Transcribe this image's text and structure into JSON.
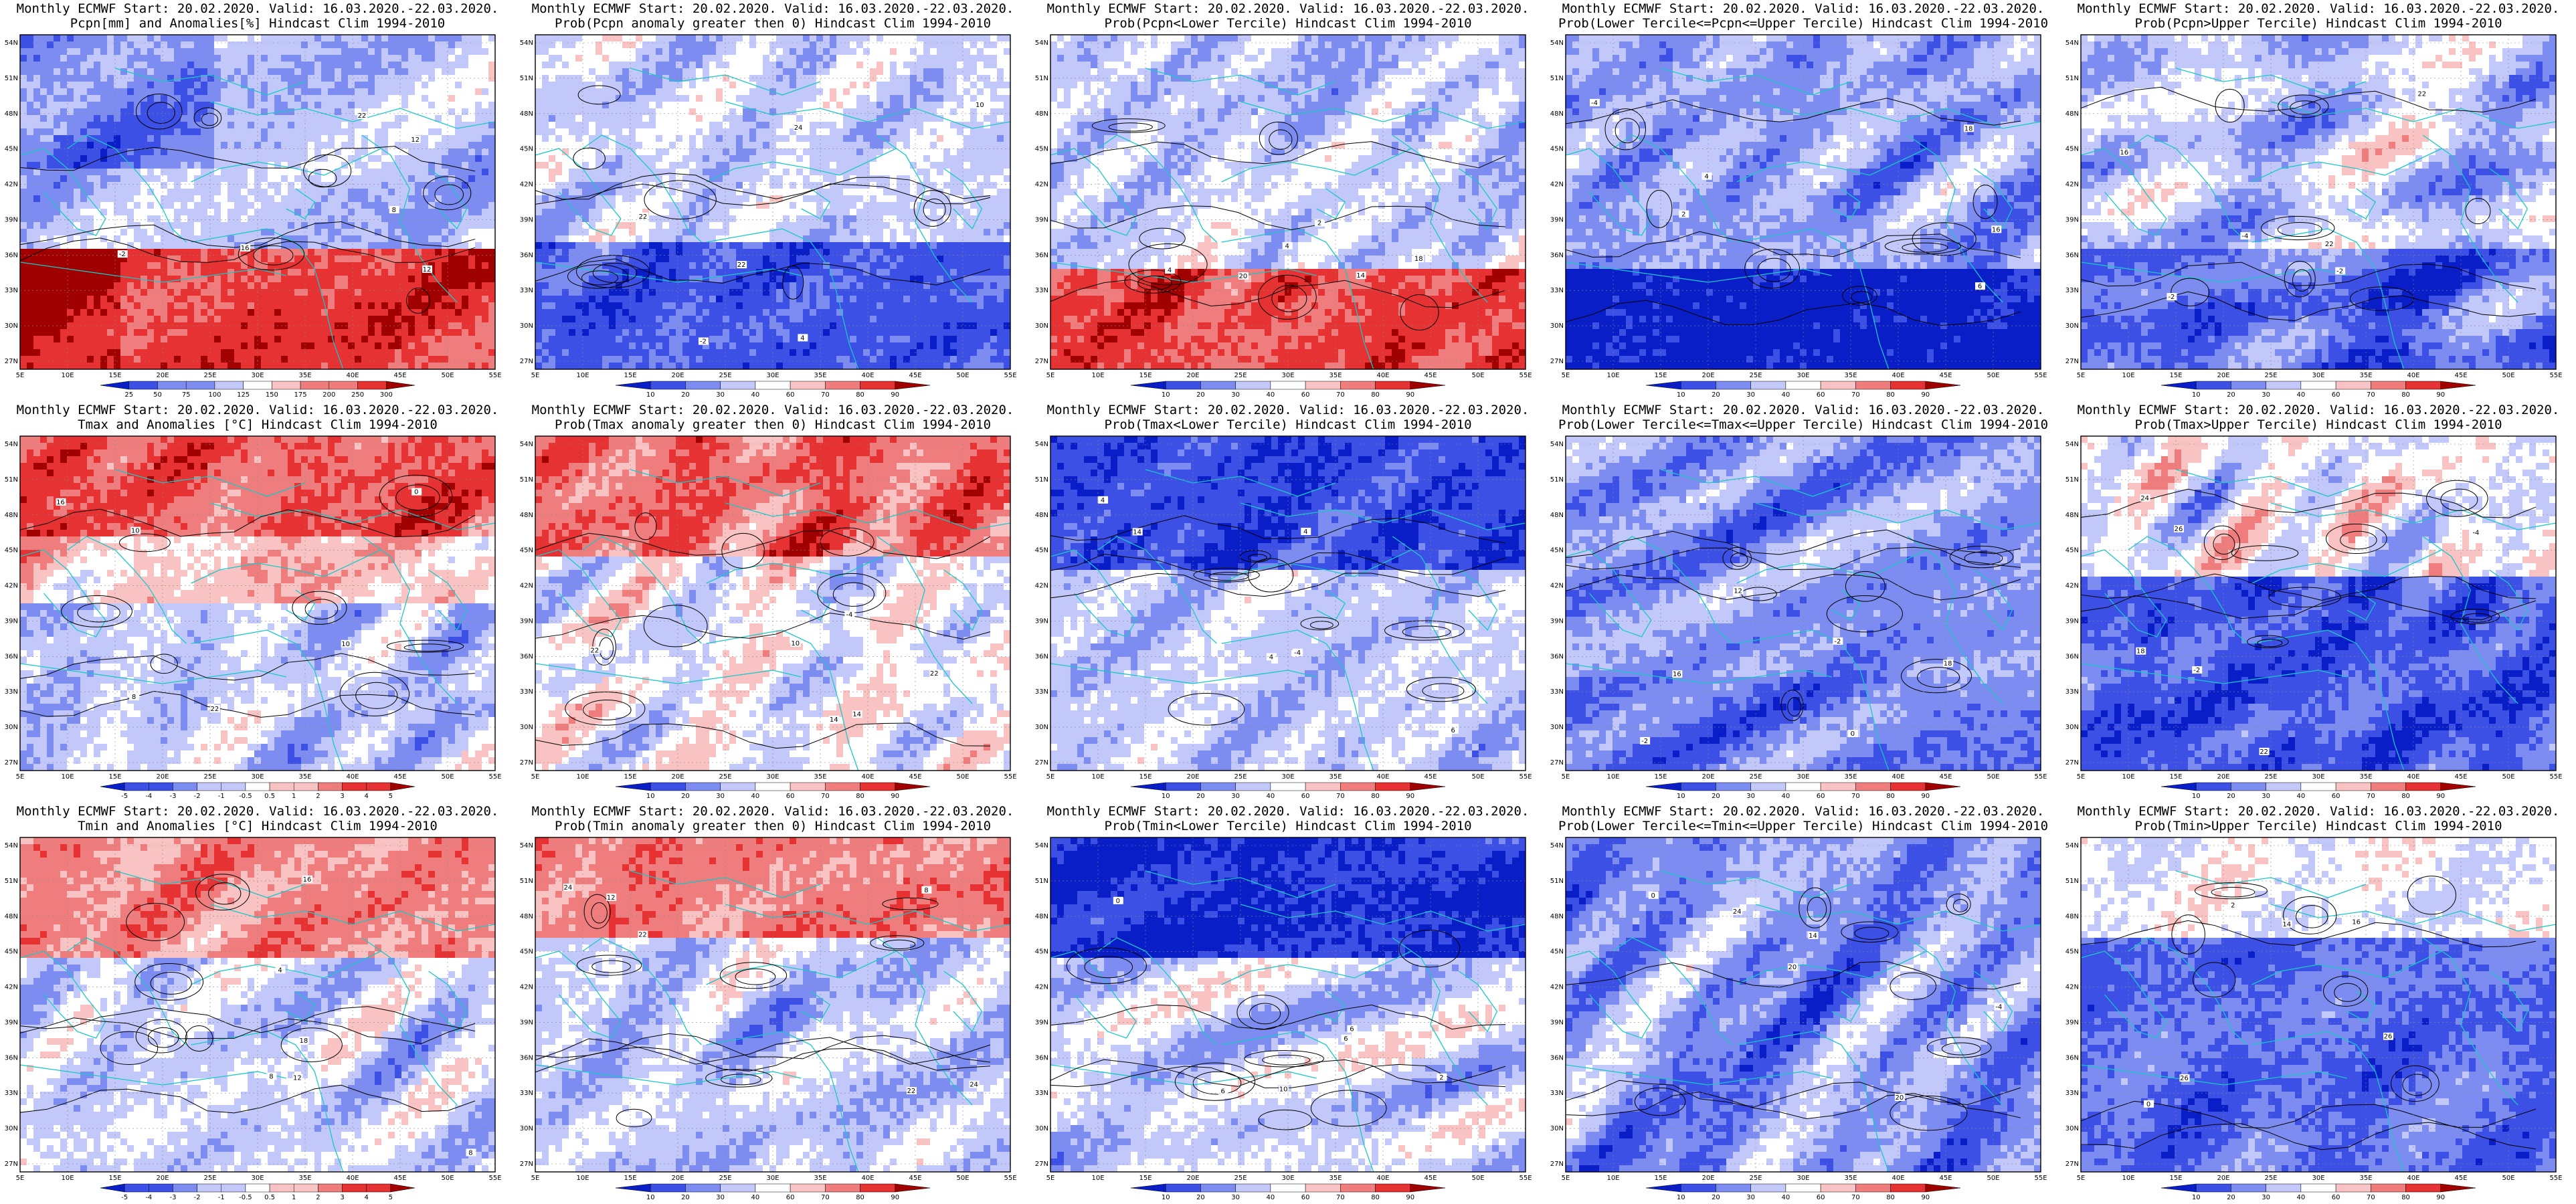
{
  "header_line": "Monthly ECMWF Start: 20.02.2020. Valid: 16.03.2020.-22.03.2020.",
  "lat_labels": [
    "54N",
    "51N",
    "48N",
    "45N",
    "42N",
    "39N",
    "36N",
    "33N",
    "30N",
    "27N"
  ],
  "lon_labels": [
    "5E",
    "10E",
    "15E",
    "20E",
    "25E",
    "30E",
    "35E",
    "40E",
    "45E",
    "50E",
    "55E"
  ],
  "legend_prob": [
    "10",
    "20",
    "30",
    "40",
    "60",
    "70",
    "80",
    "90"
  ],
  "legend_pcpn_anom": [
    "25",
    "50",
    "75",
    "100",
    "125",
    "150",
    "175",
    "200",
    "250",
    "300"
  ],
  "legend_temp_anom": [
    "-5",
    "-4",
    "-3",
    "-2",
    "-1",
    "-0.5",
    "0.5",
    "1",
    "2",
    "3",
    "4",
    "5"
  ],
  "panels": [
    {
      "subtitle": "Pcpn[mm] and Anomalies[%] Hindcast Clim 1994-2010",
      "legend": "pcpn",
      "pattern": "pcpn_anom"
    },
    {
      "subtitle": "Prob(Pcpn anomaly greater then 0) Hindcast Clim 1994-2010",
      "legend": "prob",
      "pattern": "pcpn_gt0"
    },
    {
      "subtitle": "Prob(Pcpn<Lower Tercile) Hindcast Clim 1994-2010",
      "legend": "prob",
      "pattern": "pcpn_lower"
    },
    {
      "subtitle": "Prob(Lower Tercile<=Pcpn<=Upper Tercile) Hindcast Clim 1994-2010",
      "legend": "prob",
      "pattern": "pcpn_middle"
    },
    {
      "subtitle": "Prob(Pcpn>Upper Tercile) Hindcast Clim 1994-2010",
      "legend": "prob",
      "pattern": "pcpn_upper"
    },
    {
      "subtitle": "Tmax and Anomalies [°C] Hindcast Clim 1994-2010",
      "legend": "temp",
      "pattern": "tmax_anom"
    },
    {
      "subtitle": "Prob(Tmax anomaly greater then 0) Hindcast Clim 1994-2010",
      "legend": "prob",
      "pattern": "tmax_gt0"
    },
    {
      "subtitle": "Prob(Tmax<Lower Tercile) Hindcast Clim 1994-2010",
      "legend": "prob",
      "pattern": "tmax_lower"
    },
    {
      "subtitle": "Prob(Lower Tercile<=Tmax<=Upper Tercile) Hindcast Clim 1994-2010",
      "legend": "prob",
      "pattern": "tmax_middle"
    },
    {
      "subtitle": "Prob(Tmax>Upper Tercile) Hindcast Clim 1994-2010",
      "legend": "prob",
      "pattern": "tmax_upper"
    },
    {
      "subtitle": "Tmin and Anomalies [°C] Hindcast Clim 1994-2010",
      "legend": "temp",
      "pattern": "tmin_anom"
    },
    {
      "subtitle": "Prob(Tmin anomaly greater then 0) Hindcast Clim 1994-2010",
      "legend": "prob",
      "pattern": "tmin_gt0"
    },
    {
      "subtitle": "Prob(Tmin<Lower Tercile) Hindcast Clim 1994-2010",
      "legend": "prob",
      "pattern": "tmin_lower"
    },
    {
      "subtitle": "Prob(Lower Tercile<=Tmin<=Upper Tercile) Hindcast Clim 1994-2010",
      "legend": "prob",
      "pattern": "tmin_middle"
    },
    {
      "subtitle": "Prob(Tmin>Upper Tercile) Hindcast Clim 1994-2010",
      "legend": "prob",
      "pattern": "tmin_upper"
    }
  ],
  "contour_labels": [
    "10",
    "12",
    "14",
    "16",
    "18",
    "20",
    "22",
    "24",
    "26",
    "-4",
    "-2",
    "0",
    "2",
    "4",
    "6",
    "8"
  ],
  "colors": {
    "deep_blue": "#0a1ec8",
    "blue": "#3c50e6",
    "mid_blue": "#7d8cf0",
    "light_blue": "#c3c8fa",
    "white": "#ffffff",
    "light_red": "#fac3c3",
    "mid_red": "#f07d7d",
    "red": "#e63232",
    "deep_red": "#a00000",
    "coast": "#18c8c8",
    "contour": "#000000"
  }
}
